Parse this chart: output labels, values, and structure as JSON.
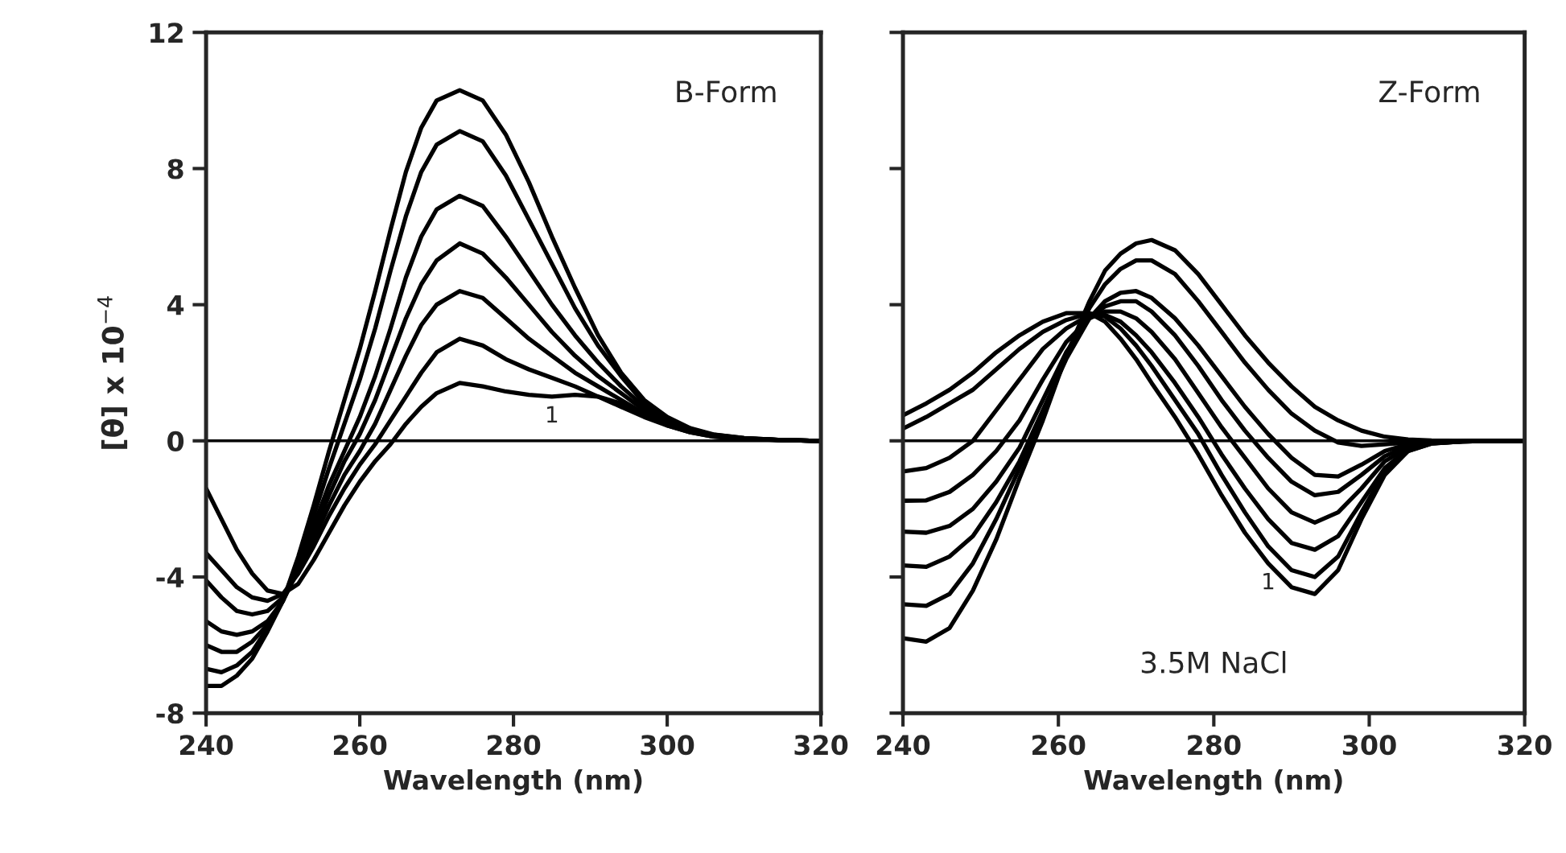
{
  "chart_data": [
    {
      "type": "line",
      "xlabel": "Wavelength (nm)",
      "ylabel": "[θ] x 10$^{−4}$",
      "annotations": [
        "B-Form",
        {
          "text": "1",
          "x": 285,
          "y": 1.3
        }
      ],
      "xlim": [
        240,
        320
      ],
      "ylim": [
        -8,
        12
      ],
      "xticks": [
        240,
        260,
        280,
        300,
        320
      ],
      "yticks": [
        -8,
        -4,
        0,
        4,
        8,
        12
      ],
      "grid": false,
      "legend": false,
      "ref_lines": [
        {
          "axis": "y",
          "value": 0,
          "color": "#000000"
        }
      ],
      "x": [
        240,
        242,
        244,
        246,
        248,
        250,
        252,
        254,
        256,
        258,
        260,
        262,
        264,
        266,
        268,
        270,
        273,
        276,
        279,
        282,
        285,
        288,
        291,
        294,
        297,
        300,
        303,
        306,
        310,
        315,
        320
      ],
      "series": [
        {
          "color": "#000000",
          "values": [
            -1.4,
            -2.3,
            -3.2,
            -3.9,
            -4.4,
            -4.5,
            -4.2,
            -3.5,
            -2.7,
            -1.9,
            -1.2,
            -0.6,
            -0.1,
            0.5,
            1.0,
            1.4,
            1.7,
            1.6,
            1.45,
            1.35,
            1.3,
            1.35,
            1.3,
            1.1,
            0.8,
            0.45,
            0.25,
            0.12,
            0.05,
            0.02,
            0.0
          ]
        },
        {
          "color": "#000000",
          "values": [
            -3.3,
            -3.8,
            -4.3,
            -4.6,
            -4.7,
            -4.5,
            -3.9,
            -3.1,
            -2.2,
            -1.4,
            -0.7,
            -0.1,
            0.6,
            1.3,
            2.0,
            2.6,
            3.0,
            2.8,
            2.4,
            2.1,
            1.85,
            1.6,
            1.3,
            1.0,
            0.7,
            0.45,
            0.25,
            0.13,
            0.06,
            0.02,
            0.0
          ]
        },
        {
          "color": "#000000",
          "values": [
            -4.1,
            -4.6,
            -5.0,
            -5.1,
            -5.0,
            -4.6,
            -3.8,
            -2.9,
            -1.9,
            -1.0,
            -0.3,
            0.5,
            1.5,
            2.5,
            3.4,
            4.0,
            4.4,
            4.2,
            3.6,
            3.0,
            2.5,
            2.0,
            1.6,
            1.2,
            0.8,
            0.5,
            0.28,
            0.15,
            0.06,
            0.02,
            0.0
          ]
        },
        {
          "color": "#000000",
          "values": [
            -5.3,
            -5.6,
            -5.7,
            -5.6,
            -5.3,
            -4.7,
            -3.8,
            -2.7,
            -1.6,
            -0.6,
            0.2,
            1.2,
            2.4,
            3.6,
            4.6,
            5.3,
            5.8,
            5.5,
            4.8,
            4.0,
            3.2,
            2.5,
            1.9,
            1.4,
            0.9,
            0.55,
            0.3,
            0.16,
            0.07,
            0.02,
            0.0
          ]
        },
        {
          "color": "#000000",
          "values": [
            -6.0,
            -6.2,
            -6.2,
            -5.9,
            -5.4,
            -4.7,
            -3.7,
            -2.5,
            -1.3,
            -0.3,
            0.7,
            1.9,
            3.3,
            4.8,
            6.0,
            6.8,
            7.2,
            6.9,
            6.0,
            5.0,
            4.0,
            3.1,
            2.3,
            1.6,
            1.0,
            0.6,
            0.32,
            0.17,
            0.07,
            0.02,
            0.0
          ]
        },
        {
          "color": "#000000",
          "values": [
            -6.7,
            -6.8,
            -6.6,
            -6.2,
            -5.5,
            -4.7,
            -3.5,
            -2.2,
            -0.8,
            0.5,
            1.8,
            3.3,
            5.0,
            6.6,
            7.9,
            8.7,
            9.1,
            8.8,
            7.8,
            6.5,
            5.2,
            3.9,
            2.8,
            1.9,
            1.1,
            0.65,
            0.35,
            0.18,
            0.08,
            0.02,
            0.0
          ]
        },
        {
          "color": "#000000",
          "values": [
            -7.2,
            -7.2,
            -6.9,
            -6.4,
            -5.6,
            -4.7,
            -3.4,
            -1.9,
            -0.3,
            1.2,
            2.7,
            4.4,
            6.2,
            7.9,
            9.2,
            10.0,
            10.3,
            10.0,
            9.0,
            7.6,
            6.0,
            4.5,
            3.1,
            2.0,
            1.2,
            0.7,
            0.37,
            0.19,
            0.08,
            0.02,
            0.0
          ]
        }
      ]
    },
    {
      "type": "line",
      "xlabel": "Wavelength (nm)",
      "annotations": [
        "Z-Form",
        "3.5M NaCl",
        {
          "text": "1",
          "x": 287,
          "y": -3.6
        }
      ],
      "xlim": [
        240,
        320
      ],
      "ylim": [
        -8,
        12
      ],
      "xticks": [
        240,
        260,
        280,
        300,
        320
      ],
      "yticks": [
        -8,
        -4,
        0,
        4,
        8,
        12
      ],
      "tick_labels": "x",
      "grid": false,
      "legend": false,
      "ref_lines": [
        {
          "axis": "y",
          "value": 0,
          "color": "#000000"
        }
      ],
      "x": [
        240,
        243,
        246,
        249,
        252,
        255,
        258,
        261,
        264,
        266,
        268,
        270,
        272,
        275,
        278,
        281,
        284,
        287,
        290,
        293,
        296,
        299,
        302,
        305,
        308,
        312,
        316,
        320
      ],
      "series": [
        {
          "color": "#000000",
          "values": [
            0.75,
            1.1,
            1.5,
            2.0,
            2.6,
            3.1,
            3.5,
            3.75,
            3.75,
            3.5,
            3.0,
            2.4,
            1.7,
            0.7,
            -0.4,
            -1.6,
            -2.7,
            -3.6,
            -4.3,
            -4.5,
            -3.8,
            -2.3,
            -1.0,
            -0.3,
            -0.08,
            -0.02,
            0.0,
            0.0
          ]
        },
        {
          "color": "#000000",
          "values": [
            0.36,
            0.7,
            1.1,
            1.5,
            2.1,
            2.7,
            3.2,
            3.55,
            3.75,
            3.65,
            3.3,
            2.8,
            2.2,
            1.2,
            0.2,
            -1.0,
            -2.1,
            -3.1,
            -3.8,
            -4.0,
            -3.4,
            -2.1,
            -0.9,
            -0.3,
            -0.08,
            -0.02,
            0.0,
            0.0
          ]
        },
        {
          "color": "#000000",
          "values": [
            -0.9,
            -0.8,
            -0.5,
            0.0,
            0.9,
            1.8,
            2.7,
            3.3,
            3.7,
            3.7,
            3.5,
            3.1,
            2.6,
            1.7,
            0.7,
            -0.4,
            -1.4,
            -2.3,
            -3.0,
            -3.2,
            -2.8,
            -1.8,
            -0.8,
            -0.25,
            -0.07,
            -0.02,
            0.0,
            0.0
          ]
        },
        {
          "color": "#000000",
          "values": [
            -1.76,
            -1.75,
            -1.5,
            -1.0,
            -0.3,
            0.6,
            1.8,
            2.9,
            3.6,
            3.8,
            3.8,
            3.6,
            3.2,
            2.4,
            1.4,
            0.4,
            -0.5,
            -1.4,
            -2.1,
            -2.4,
            -2.1,
            -1.4,
            -0.6,
            -0.2,
            -0.06,
            -0.02,
            0.0,
            0.0
          ]
        },
        {
          "color": "#000000",
          "values": [
            -2.67,
            -2.7,
            -2.5,
            -2.0,
            -1.2,
            -0.2,
            1.2,
            2.6,
            3.6,
            3.95,
            4.1,
            4.1,
            3.8,
            3.1,
            2.2,
            1.2,
            0.3,
            -0.5,
            -1.2,
            -1.6,
            -1.5,
            -1.0,
            -0.45,
            -0.15,
            -0.05,
            -0.01,
            0.0,
            0.0
          ]
        },
        {
          "color": "#000000",
          "values": [
            -3.66,
            -3.7,
            -3.4,
            -2.8,
            -1.8,
            -0.6,
            0.9,
            2.4,
            3.6,
            4.1,
            4.35,
            4.4,
            4.2,
            3.6,
            2.8,
            1.9,
            1.0,
            0.2,
            -0.5,
            -1.0,
            -1.05,
            -0.7,
            -0.3,
            -0.1,
            -0.03,
            -0.01,
            0.0,
            0.0
          ]
        },
        {
          "color": "#000000",
          "values": [
            -4.8,
            -4.85,
            -4.5,
            -3.6,
            -2.3,
            -0.8,
            0.8,
            2.5,
            3.9,
            4.6,
            5.05,
            5.3,
            5.3,
            4.9,
            4.1,
            3.2,
            2.3,
            1.5,
            0.8,
            0.3,
            -0.05,
            -0.15,
            -0.1,
            -0.05,
            -0.02,
            -0.01,
            0.0,
            0.0
          ]
        },
        {
          "color": "#000000",
          "values": [
            -5.8,
            -5.9,
            -5.5,
            -4.4,
            -2.9,
            -1.1,
            0.6,
            2.5,
            4.1,
            5.0,
            5.5,
            5.8,
            5.9,
            5.6,
            4.9,
            4.0,
            3.1,
            2.3,
            1.6,
            1.0,
            0.6,
            0.3,
            0.12,
            0.04,
            0.01,
            0.0,
            0.0,
            0.0
          ]
        }
      ]
    }
  ]
}
